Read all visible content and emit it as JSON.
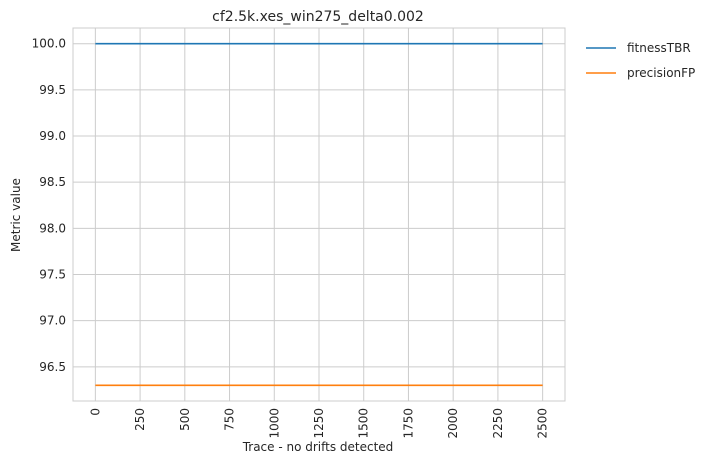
{
  "chart_data": {
    "type": "line",
    "title": "cf2.5k.xes_win275_delta0.002",
    "xlabel": "Trace - no drifts detected",
    "ylabel": "Metric value",
    "xlim": [
      -125,
      2625
    ],
    "ylim": [
      96.13,
      100.17
    ],
    "x_ticks": [
      0,
      250,
      500,
      750,
      1000,
      1250,
      1500,
      1750,
      2000,
      2250,
      2500
    ],
    "x_tick_labels": [
      "0",
      "250",
      "500",
      "750",
      "1000",
      "1250",
      "1500",
      "1750",
      "2000",
      "2250",
      "2500"
    ],
    "y_ticks": [
      96.5,
      97.0,
      97.5,
      98.0,
      98.5,
      99.0,
      99.5,
      100.0
    ],
    "y_tick_labels": [
      "96.5",
      "97.0",
      "97.5",
      "98.0",
      "98.5",
      "99.0",
      "99.5",
      "100.0"
    ],
    "grid": true,
    "legend_position": "outside-top-right",
    "series": [
      {
        "name": "fitnessTBR",
        "color": "#1f77b4",
        "x": [
          0,
          2500
        ],
        "y": [
          100.0,
          100.0
        ]
      },
      {
        "name": "precisionFP",
        "color": "#ff7f0e",
        "x": [
          0,
          2500
        ],
        "y": [
          96.3,
          96.3
        ]
      }
    ]
  }
}
